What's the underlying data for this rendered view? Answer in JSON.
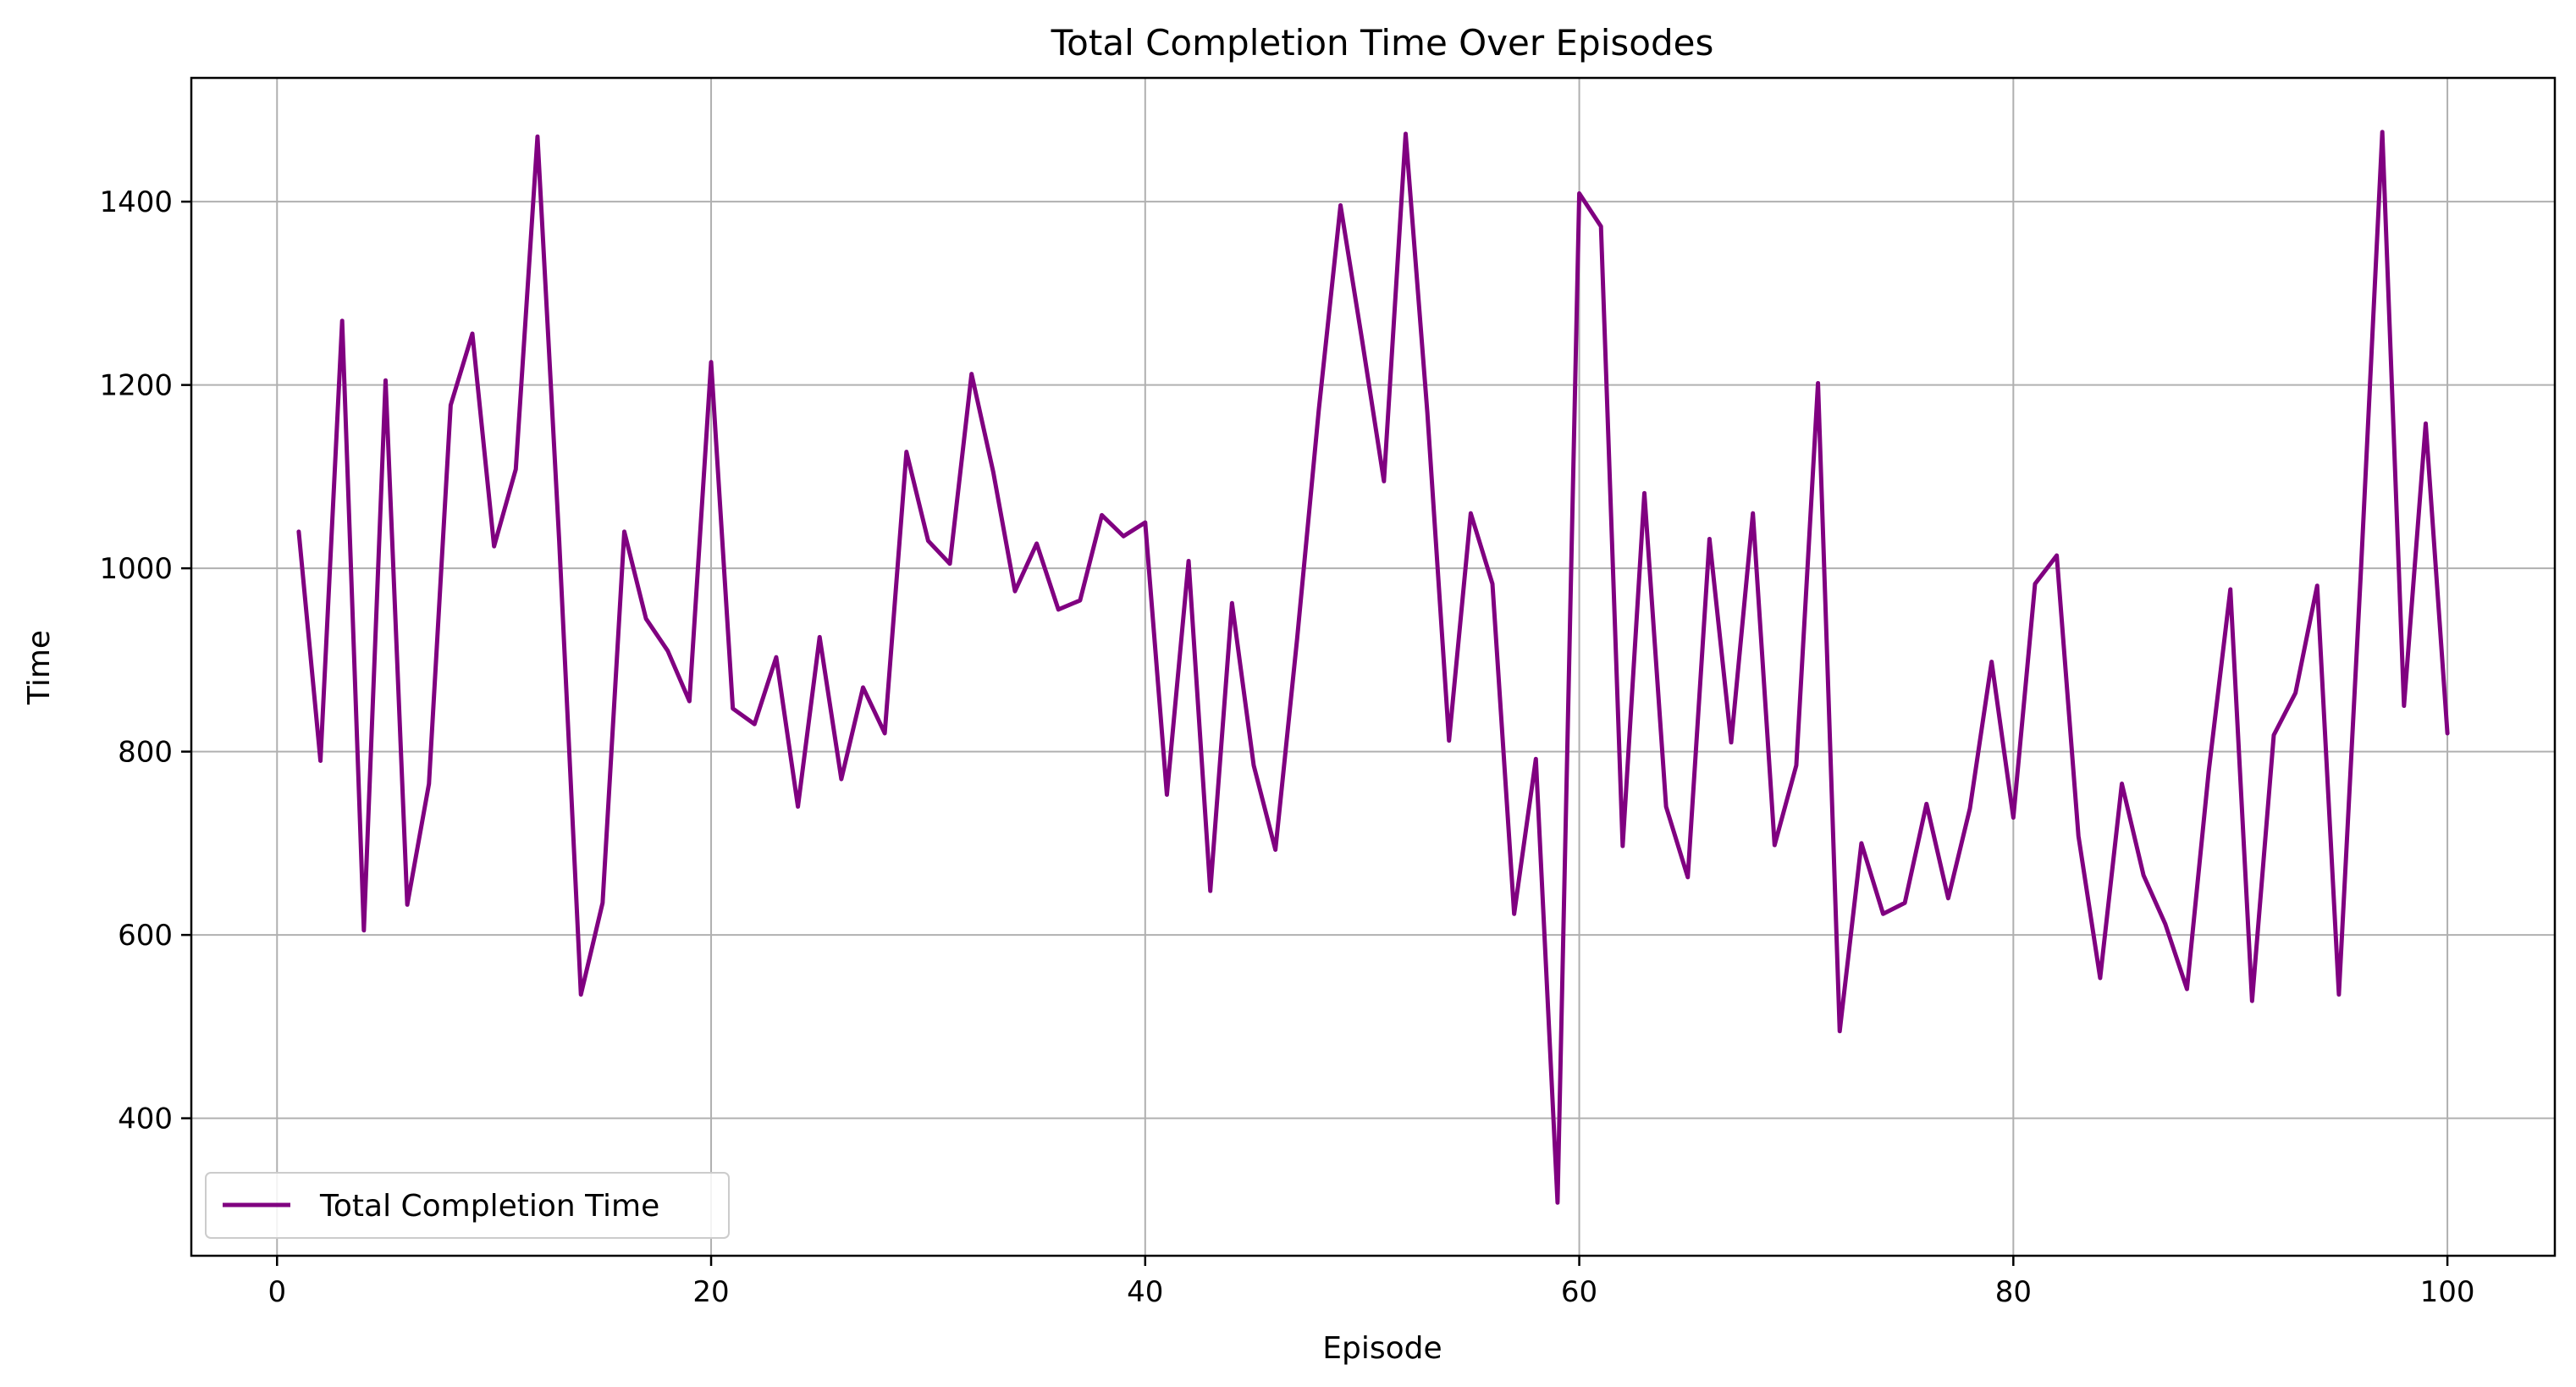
{
  "chart_data": {
    "type": "line",
    "title": "Total Completion Time Over Episodes",
    "xlabel": "Episode",
    "ylabel": "Time",
    "xlim": [
      -3.95,
      104.95
    ],
    "ylim": [
      250,
      1535
    ],
    "xticks": [
      0,
      20,
      40,
      60,
      80,
      100
    ],
    "yticks": [
      400,
      600,
      800,
      1000,
      1200,
      1400
    ],
    "grid": true,
    "legend_position": "lower-left",
    "series": [
      {
        "name": "Total Completion Time",
        "color": "#800080",
        "x": [
          1,
          2,
          3,
          4,
          5,
          6,
          7,
          8,
          9,
          10,
          11,
          12,
          13,
          14,
          15,
          16,
          17,
          18,
          19,
          20,
          21,
          22,
          23,
          24,
          25,
          26,
          27,
          28,
          29,
          30,
          31,
          32,
          33,
          34,
          35,
          36,
          37,
          38,
          39,
          40,
          41,
          42,
          43,
          44,
          45,
          46,
          47,
          48,
          49,
          50,
          51,
          52,
          53,
          54,
          55,
          56,
          57,
          58,
          59,
          60,
          61,
          62,
          63,
          64,
          65,
          66,
          67,
          68,
          69,
          70,
          71,
          72,
          73,
          74,
          75,
          76,
          77,
          78,
          79,
          80,
          81,
          82,
          83,
          84,
          85,
          86,
          87,
          88,
          89,
          90,
          91,
          92,
          93,
          94,
          95,
          96,
          97,
          98,
          99,
          100
        ],
        "values": [
          1040,
          790,
          1270,
          605,
          1205,
          633,
          765,
          1178,
          1256,
          1024,
          1108,
          1471,
          1030,
          535,
          635,
          1040,
          945,
          910,
          855,
          1225,
          847,
          830,
          903,
          740,
          925,
          770,
          870,
          820,
          1127,
          1030,
          1005,
          1212,
          1105,
          975,
          1027,
          955,
          965,
          1058,
          1035,
          1050,
          753,
          1008,
          648,
          962,
          785,
          693,
          923,
          1173,
          1396,
          1248,
          1095,
          1474,
          1170,
          812,
          1060,
          983,
          623,
          792,
          308,
          1409,
          1373,
          697,
          1082,
          740,
          663,
          1032,
          810,
          1060,
          698,
          785,
          1202,
          495,
          700,
          623,
          635,
          743,
          640,
          738,
          898,
          728,
          983,
          1014,
          708,
          553,
          765,
          665,
          612,
          541,
          778,
          977,
          528,
          818,
          864,
          981,
          535,
          990,
          1476,
          850,
          1158,
          820
        ]
      }
    ]
  },
  "colors": {
    "line": "#800080",
    "grid": "#b0b0b0",
    "axes": "#000000",
    "background": "#ffffff"
  }
}
